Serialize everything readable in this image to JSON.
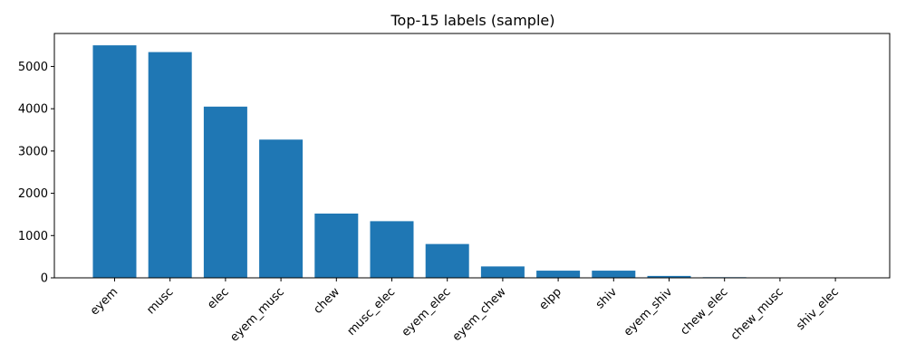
{
  "chart_data": {
    "type": "bar",
    "title": "Top-15 labels (sample)",
    "xlabel": "",
    "ylabel": "",
    "categories": [
      "eyem",
      "musc",
      "elec",
      "eyem_musc",
      "chew",
      "musc_elec",
      "eyem_elec",
      "eyem_chew",
      "elpp",
      "shiv",
      "eyem_shiv",
      "chew_elec",
      "chew_musc",
      "shiv_elec"
    ],
    "values": [
      5500,
      5340,
      4050,
      3270,
      1520,
      1340,
      800,
      270,
      170,
      170,
      45,
      15,
      5,
      3
    ],
    "ylim": [
      0,
      5780
    ],
    "yticks": [
      0,
      1000,
      2000,
      3000,
      4000,
      5000
    ],
    "bar_color": "#1f77b4",
    "grid": false
  }
}
